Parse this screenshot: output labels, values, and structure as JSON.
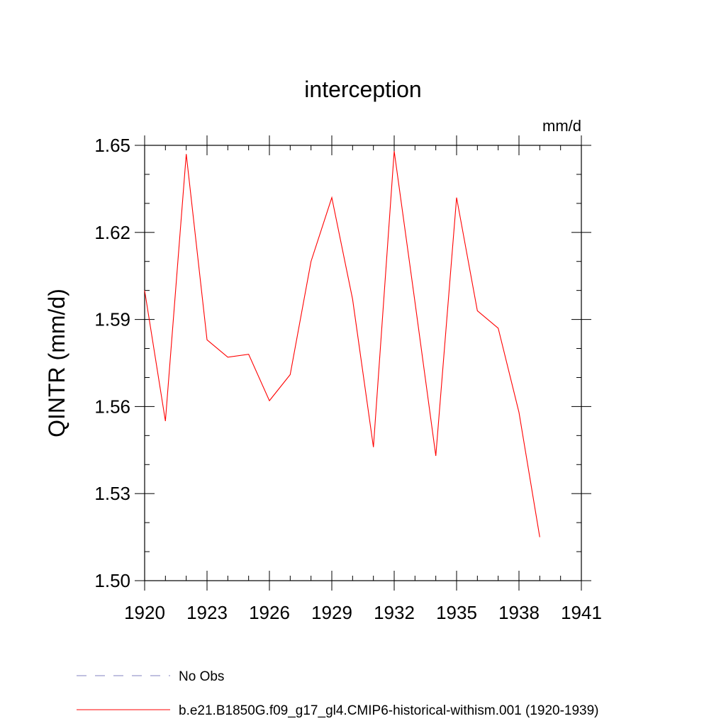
{
  "chart_data": {
    "type": "line",
    "title": "interception",
    "units": "mm/d",
    "ylabel": "QINTR  (mm/d)",
    "xlabel": "",
    "xlim": [
      1920,
      1941
    ],
    "ylim": [
      1.5,
      1.65
    ],
    "xticks": [
      "1920",
      "1923",
      "1926",
      "1929",
      "1932",
      "1935",
      "1938",
      "1941"
    ],
    "yticks": [
      "1.50",
      "1.53",
      "1.56",
      "1.59",
      "1.62",
      "1.65"
    ],
    "grid": false,
    "legend_position": "bottom-left",
    "series": [
      {
        "name": "b.e21.B1850G.f09_g17_gl4.CMIP6-historical-withism.001 (1920-1939)",
        "color": "#ff0000",
        "style": "solid",
        "x": [
          1920,
          1921,
          1922,
          1923,
          1924,
          1925,
          1926,
          1927,
          1928,
          1929,
          1930,
          1931,
          1932,
          1933,
          1934,
          1935,
          1936,
          1937,
          1938,
          1939
        ],
        "y": [
          1.6,
          1.555,
          1.647,
          1.583,
          1.577,
          1.578,
          1.562,
          1.571,
          1.61,
          1.632,
          1.597,
          1.546,
          1.648,
          1.596,
          1.543,
          1.632,
          1.593,
          1.587,
          1.558,
          1.515
        ]
      },
      {
        "name": "No Obs",
        "color": "#8080c0",
        "style": "dashed",
        "x": [],
        "y": []
      }
    ]
  }
}
